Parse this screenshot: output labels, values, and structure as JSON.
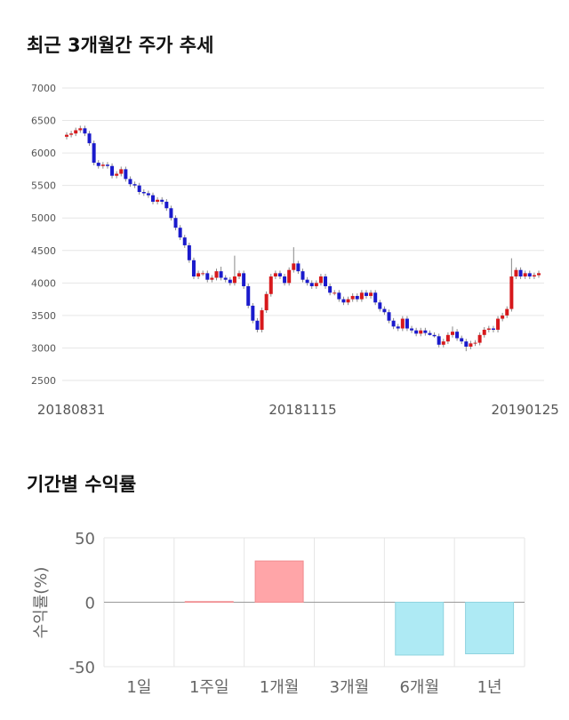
{
  "chart_data": [
    {
      "type": "candlestick",
      "title": "최근 3개월간 주가 추세",
      "categories": [
        null,
        "20180831",
        null,
        null,
        null,
        null,
        null,
        null,
        null,
        null,
        null,
        null,
        null,
        null,
        null,
        null,
        null,
        null,
        null,
        null,
        null,
        null,
        null,
        null,
        null,
        null,
        null,
        null,
        null,
        null,
        null,
        null,
        null,
        null,
        null,
        null,
        null,
        null,
        null,
        null,
        null,
        null,
        null,
        null,
        null,
        null,
        null,
        null,
        null,
        null,
        null,
        null,
        "20181115",
        null,
        null,
        null,
        null,
        null,
        null,
        null,
        null,
        null,
        null,
        null,
        null,
        null,
        null,
        null,
        null,
        null,
        null,
        null,
        null,
        null,
        null,
        null,
        null,
        null,
        null,
        null,
        null,
        null,
        null,
        null,
        null,
        null,
        null,
        null,
        null,
        null,
        null,
        null,
        null,
        null,
        null,
        null,
        null,
        null,
        null,
        null,
        null,
        "20190125",
        null,
        null,
        null
      ],
      "open": [
        6250,
        6280,
        6300,
        6350,
        6380,
        6300,
        6150,
        5850,
        5800,
        5820,
        5800,
        5650,
        5680,
        5750,
        5600,
        5520,
        5500,
        5400,
        5380,
        5350,
        5250,
        5280,
        5250,
        5150,
        5000,
        4850,
        4700,
        4580,
        4350,
        4100,
        4150,
        4150,
        4050,
        4080,
        4180,
        4080,
        4050,
        4000,
        4100,
        4150,
        3950,
        3650,
        3420,
        3280,
        3580,
        3830,
        4100,
        4150,
        4100,
        4000,
        4200,
        4300,
        4180,
        4050,
        4000,
        3950,
        4000,
        4100,
        3950,
        3850,
        3850,
        3750,
        3700,
        3750,
        3800,
        3750,
        3850,
        3800,
        3850,
        3700,
        3600,
        3550,
        3420,
        3330,
        3300,
        3450,
        3300,
        3270,
        3220,
        3270,
        3230,
        3200,
        3180,
        3050,
        3100,
        3200,
        3250,
        3150,
        3100,
        3020,
        3070,
        3080,
        3200,
        3280,
        3300,
        3280,
        3450,
        3500,
        3600,
        4100,
        4200,
        4100,
        4150,
        4100,
        4120
      ],
      "close": [
        6280,
        6300,
        6350,
        6380,
        6300,
        6150,
        5850,
        5800,
        5820,
        5800,
        5650,
        5680,
        5750,
        5600,
        5520,
        5500,
        5400,
        5380,
        5350,
        5250,
        5280,
        5250,
        5150,
        5000,
        4850,
        4700,
        4580,
        4350,
        4100,
        4150,
        4150,
        4050,
        4080,
        4180,
        4080,
        4050,
        4000,
        4100,
        4150,
        3950,
        3650,
        3420,
        3280,
        3580,
        3830,
        4100,
        4150,
        4100,
        4000,
        4200,
        4300,
        4180,
        4050,
        4000,
        3950,
        4000,
        4100,
        3950,
        3850,
        3850,
        3750,
        3700,
        3750,
        3800,
        3750,
        3850,
        3800,
        3850,
        3700,
        3600,
        3550,
        3420,
        3330,
        3300,
        3450,
        3300,
        3270,
        3220,
        3270,
        3230,
        3200,
        3180,
        3050,
        3100,
        3200,
        3250,
        3150,
        3100,
        3020,
        3070,
        3080,
        3200,
        3280,
        3300,
        3280,
        3450,
        3500,
        3600,
        4100,
        4200,
        4100,
        4150,
        4100,
        4120,
        4150
      ],
      "high": [
        6320,
        6340,
        6390,
        6420,
        6420,
        6340,
        6190,
        5890,
        5860,
        5860,
        5840,
        5720,
        5790,
        5790,
        5640,
        5560,
        5540,
        5440,
        5420,
        5390,
        5320,
        5320,
        5290,
        5190,
        5040,
        4890,
        4740,
        4620,
        4390,
        4190,
        4190,
        4190,
        4120,
        4220,
        4250,
        4120,
        4090,
        4420,
        4190,
        4190,
        3990,
        3690,
        3460,
        3620,
        3870,
        4140,
        4190,
        4190,
        4140,
        4240,
        4550,
        4340,
        4220,
        4090,
        4040,
        4040,
        4140,
        4140,
        3990,
        3890,
        3890,
        3790,
        3790,
        3840,
        3840,
        3890,
        3890,
        3890,
        3890,
        3740,
        3640,
        3590,
        3460,
        3370,
        3490,
        3490,
        3340,
        3310,
        3310,
        3310,
        3270,
        3240,
        3220,
        3140,
        3240,
        3330,
        3290,
        3190,
        3140,
        3110,
        3120,
        3240,
        3320,
        3340,
        3340,
        3490,
        3540,
        3640,
        4380,
        4240,
        4240,
        4190,
        4190,
        4160,
        4190
      ],
      "low": [
        6210,
        6240,
        6260,
        6310,
        6260,
        6110,
        5810,
        5760,
        5760,
        5760,
        5610,
        5610,
        5640,
        5560,
        5480,
        5460,
        5360,
        5340,
        5310,
        5210,
        5210,
        5210,
        5110,
        4960,
        4810,
        4660,
        4540,
        4310,
        4060,
        4060,
        4110,
        4010,
        4010,
        4040,
        4040,
        4010,
        3960,
        3960,
        4060,
        3910,
        3610,
        3380,
        3240,
        3240,
        3540,
        3790,
        4060,
        4060,
        3960,
        3960,
        4160,
        4140,
        4010,
        3960,
        3910,
        3910,
        3960,
        3910,
        3810,
        3810,
        3710,
        3660,
        3660,
        3710,
        3710,
        3710,
        3760,
        3760,
        3660,
        3560,
        3510,
        3380,
        3290,
        3260,
        3260,
        3260,
        3230,
        3180,
        3180,
        3190,
        3190,
        3160,
        3010,
        3010,
        3060,
        3160,
        3110,
        3060,
        2950,
        2980,
        3030,
        3040,
        3160,
        3240,
        3240,
        3240,
        3410,
        3460,
        3560,
        4060,
        4060,
        4060,
        4060,
        4060,
        4080
      ],
      "up_color": "#d7191c",
      "down_color": "#1a1acc",
      "ylim": [
        2500,
        7000
      ],
      "yticks": [
        2500,
        3000,
        3500,
        4000,
        4500,
        5000,
        5500,
        6000,
        6500,
        7000
      ],
      "grid": true
    },
    {
      "type": "bar",
      "title": "기간별 수익률",
      "ylabel": "수익률(%)",
      "categories": [
        "1일",
        "1주일",
        "1개월",
        "3개월",
        "6개월",
        "1년"
      ],
      "values": [
        0,
        0.5,
        32,
        0,
        -41,
        -40
      ],
      "positive_color": "#ffa5a8",
      "negative_color": "#aeeaf4",
      "ylim": [
        -50,
        50
      ],
      "yticks": [
        -50,
        0,
        50
      ],
      "grid": true
    }
  ]
}
